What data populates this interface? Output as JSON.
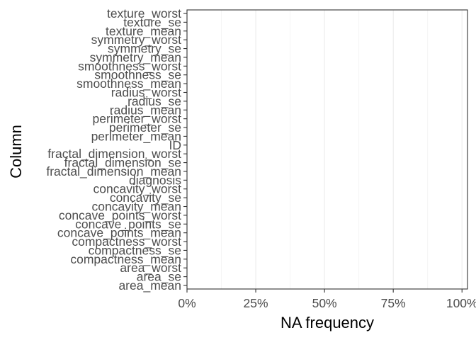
{
  "chart_data": {
    "type": "bar",
    "orientation": "horizontal",
    "xlabel": "NA frequency",
    "ylabel": "Column",
    "xlim": [
      0,
      1.02
    ],
    "x_ticks": [
      0,
      0.25,
      0.5,
      0.75,
      1
    ],
    "x_tick_labels": [
      "0%",
      "25%",
      "50%",
      "75%",
      "100%"
    ],
    "x_minor_gridlines": [
      0.125,
      0.375,
      0.625,
      0.875
    ],
    "grid": true,
    "categories": [
      "texture_worst",
      "texture_se",
      "texture_mean",
      "symmetry_worst",
      "symmetry_se",
      "symmetry_mean",
      "smoothness_worst",
      "smoothness_se",
      "smoothness_mean",
      "radius_worst",
      "radius_se",
      "radius_mean",
      "perimeter_worst",
      "perimeter_se",
      "perimeter_mean",
      "ID",
      "fractal_dimension_worst",
      "fractal_dimension_se",
      "fractal_dimension_mean",
      "diagnosis",
      "concavity_worst",
      "concavity_se",
      "concavity_mean",
      "concave_points_worst",
      "concave_points_se",
      "concave_points_mean",
      "compactness_worst",
      "compactness_se",
      "compactness_mean",
      "area_worst",
      "area_se",
      "area_mean"
    ],
    "values": [
      0,
      0,
      0,
      0,
      0,
      0,
      0,
      0,
      0,
      0,
      0,
      0,
      0,
      0,
      0,
      0,
      0,
      0,
      0,
      0,
      0,
      0,
      0,
      0,
      0,
      0,
      0,
      0,
      0,
      0,
      0,
      0
    ]
  },
  "colors": {
    "background": "#ffffff",
    "panel_border": "#333333",
    "grid_major": "#ebebeb",
    "grid_minor": "#f3f3f3",
    "tick_text": "#4d4d4d",
    "axis_title": "#000000",
    "bar_fill": "#595959"
  }
}
